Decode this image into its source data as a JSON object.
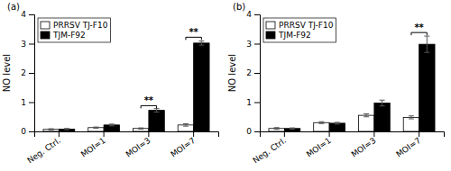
{
  "chart_data": [
    {
      "type": "bar",
      "title": "(a)",
      "categories": [
        "Neg. Ctrl.",
        "MOI=1",
        "MOI=3",
        "MOI=7"
      ],
      "series": [
        {
          "name": "PRRSV TJ-F10",
          "color": "#ffffff",
          "values": [
            0.07,
            0.13,
            0.1,
            0.22
          ],
          "errors": [
            0.02,
            0.02,
            0.02,
            0.04
          ]
        },
        {
          "name": "TJM-F92",
          "color": "#000000",
          "values": [
            0.08,
            0.22,
            0.72,
            3.02
          ],
          "errors": [
            0.02,
            0.03,
            0.06,
            0.07
          ]
        }
      ],
      "ylim": [
        0,
        4
      ],
      "yticks": [
        0,
        1,
        2,
        3,
        4
      ],
      "ylabel": "NO level",
      "legend": "upper left",
      "annotations": [
        {
          "category": "MOI=3",
          "y": 0.88,
          "text": "**"
        },
        {
          "category": "MOI=7",
          "y": 3.22,
          "text": "**"
        }
      ]
    },
    {
      "type": "bar",
      "title": "(b)",
      "categories": [
        "Neg. Ctrl.",
        "MOI=1",
        "MOI=3",
        "MOI=7"
      ],
      "series": [
        {
          "name": "PRRSV TJ-F10",
          "color": "#ffffff",
          "values": [
            0.1,
            0.3,
            0.55,
            0.48
          ],
          "errors": [
            0.03,
            0.03,
            0.05,
            0.05
          ]
        },
        {
          "name": "TJM-F92",
          "color": "#000000",
          "values": [
            0.1,
            0.28,
            0.97,
            2.98
          ],
          "errors": [
            0.02,
            0.03,
            0.1,
            0.28
          ]
        }
      ],
      "ylim": [
        0,
        4
      ],
      "yticks": [
        0,
        1,
        2,
        3,
        4
      ],
      "ylabel": "NO level",
      "legend": "upper left",
      "annotations": [
        {
          "category": "MOI=7",
          "y": 3.38,
          "text": "**"
        }
      ]
    }
  ]
}
